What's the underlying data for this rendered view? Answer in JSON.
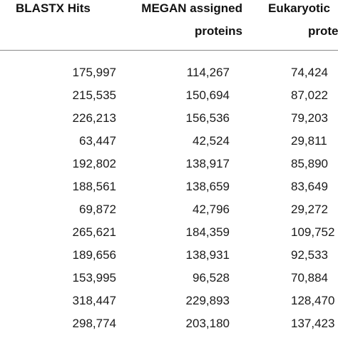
{
  "table": {
    "headers": {
      "blastx": [
        "BLASTX Hits"
      ],
      "megan": [
        "MEGAN assigned",
        "proteins"
      ],
      "eukaryotic": [
        "Eukaryotic",
        "prote"
      ]
    },
    "rows": [
      [
        "175,997",
        "114,267",
        "74,424"
      ],
      [
        "215,535",
        "150,694",
        "87,022"
      ],
      [
        "226,213",
        "156,536",
        "79,203"
      ],
      [
        "63,447",
        "42,524",
        "29,811"
      ],
      [
        "192,802",
        "138,917",
        "85,890"
      ],
      [
        "188,561",
        "138,659",
        "83,649"
      ],
      [
        "69,872",
        "42,796",
        "29,272"
      ],
      [
        "265,621",
        "184,359",
        "109,752"
      ],
      [
        "189,656",
        "138,931",
        "92,533"
      ],
      [
        "153,995",
        "96,528",
        "70,884"
      ],
      [
        "318,447",
        "229,893",
        "128,470"
      ],
      [
        "298,774",
        "203,180",
        "137,423"
      ]
    ]
  }
}
